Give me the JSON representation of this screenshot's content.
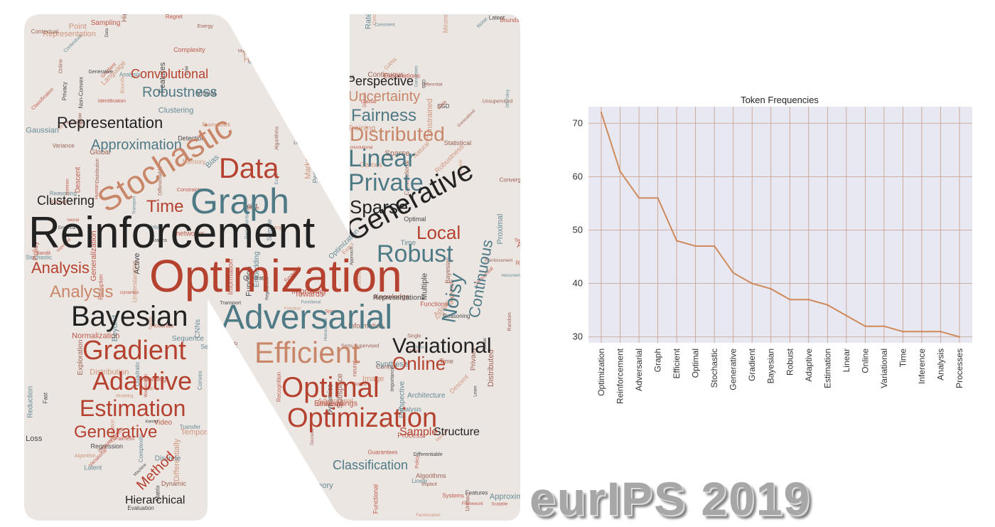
{
  "wordcloud": {
    "colors": [
      "#b5412f",
      "#c9876a",
      "#2a2a2a",
      "#4e7a86",
      "#8c4a3a"
    ],
    "small_words": [
      "Regularized",
      "Subspace",
      "CNNs",
      "Reduction",
      "Scalable",
      "Information",
      "Towards",
      "Convolutional",
      "Complexity",
      "Robustness",
      "Markov",
      "Convergence",
      "Representation",
      "Global",
      "Descent",
      "Framework",
      "Bounds",
      "Approximation",
      "Policy",
      "Control",
      "Data",
      "Machine",
      "Clustering",
      "Constraints",
      "neural",
      "Time",
      "Monte",
      "Contextual",
      "Point",
      "Latent",
      "Search",
      "Algorithms",
      "Planning",
      "Analysis",
      "Kernel",
      "Causal",
      "Recurrent",
      "Visual",
      "SGD",
      "Privacy",
      "Exact",
      "Function",
      "Transport",
      "Minimization",
      "Quadratic",
      "Features",
      "Proximal",
      "Differentiable",
      "Dynamics",
      "Distribution",
      "Functional",
      "Spaces",
      "Explanations",
      "Hierarchical",
      "Reasoning",
      "Method",
      "Detection",
      "Approach",
      "Segmentation",
      "networks",
      "Loss",
      "Noise",
      "Bias",
      "Conditional",
      "Variance",
      "Attention",
      "Low",
      "Transfer",
      "Convex",
      "Accurate",
      "Large",
      "GANs",
      "Regret",
      "Sample",
      "Structure",
      "Implicit",
      "Guarantees",
      "Functions",
      "Object",
      "Random",
      "learning",
      "Sampling",
      "Classification",
      "Understanding",
      "Regularization",
      "Synthesis",
      "Consistent",
      "Embeddings",
      "Games",
      "Differentially",
      "Temporal",
      "Knowledge",
      "Process",
      "Factorization",
      "Human",
      "Identification",
      "Domain",
      "Perturbations",
      "Systems",
      "Sequential",
      "Semi-Supervised",
      "Semantic",
      "Autoencoders",
      "Normalization",
      "Natural",
      "Differential",
      "Embedding",
      "Language",
      "Feedback",
      "Recognition",
      "Non-Convex",
      "Gaussian",
      "Generalized",
      "Empirical",
      "Unsupervised",
      "Perspective",
      "Dynamic",
      "Modeling",
      "Uncertainty",
      "Sequence",
      "Regression",
      "Fairness",
      "Linear",
      "Graphs",
      "Distributed",
      "Off-Policy",
      "Bandit",
      "Memory",
      "Fast",
      "Structured",
      "Private",
      "Matrix",
      "Sparse",
      "Exploration",
      "Image",
      "Algorithm",
      "Generation",
      "Local",
      "Beyond",
      "Noisy",
      "Continuous",
      "Multi-Agent",
      "Similarity",
      "Confidence",
      "Energy",
      "Theory",
      "Active",
      "Lower",
      "Single",
      "Metric",
      "Rate",
      "Evaluation",
      "Statistical",
      "Decision",
      "Wasserstein",
      "Architecture",
      "Video",
      "Importance",
      "Improving",
      "Aggregation",
      "Improved",
      "Constrained",
      "High-Dimensional",
      "Multiple",
      "Unified",
      "Learn",
      "Discrete",
      "Robust",
      "Efficient",
      "Optimal",
      "Variational",
      "Adaptive",
      "Estimation",
      "Generalization",
      "Gradient",
      "Bayesian",
      "Adversarial",
      "Training",
      "Representations",
      "Online",
      "Generative",
      "Graph",
      "Stochastic",
      "Reinforcement",
      "Optimization"
    ]
  },
  "chart_data": {
    "type": "line",
    "title": "Token Frequencies",
    "xlabel": "",
    "ylabel": "",
    "categories": [
      "Optimization",
      "Reinforcement",
      "Adversarial",
      "Graph",
      "Efficient",
      "Optimal",
      "Stochastic",
      "Generative",
      "Gradient",
      "Bayesian",
      "Robust",
      "Adaptive",
      "Estimation",
      "Linear",
      "Online",
      "Variational",
      "Time",
      "Inference",
      "Analysis",
      "Processes"
    ],
    "values": [
      72,
      61,
      56,
      56,
      48,
      47,
      47,
      42,
      40,
      39,
      37,
      37,
      36,
      34,
      32,
      32,
      31,
      31,
      31,
      30
    ],
    "ylim": [
      28.9,
      73.1
    ],
    "yticks": [
      "30",
      "40",
      "50",
      "60",
      "70"
    ],
    "grid": true,
    "line_color": "#cf8a5b",
    "plot_bg": "#e8e8f2",
    "grid_color": "#c89a86"
  },
  "banner": {
    "text": "eurIPS 2019"
  }
}
